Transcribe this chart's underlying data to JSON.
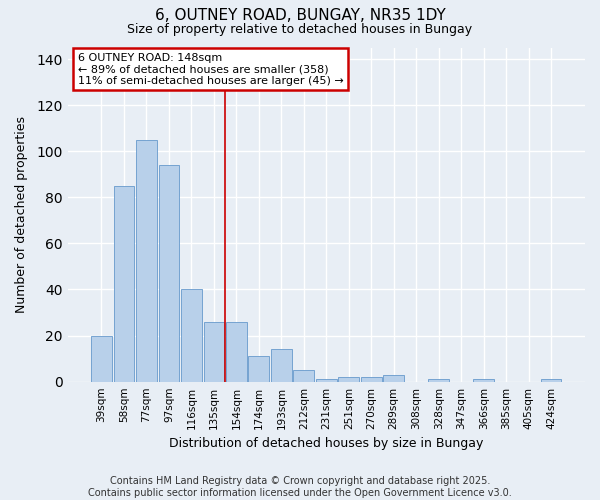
{
  "title": "6, OUTNEY ROAD, BUNGAY, NR35 1DY",
  "subtitle": "Size of property relative to detached houses in Bungay",
  "xlabel": "Distribution of detached houses by size in Bungay",
  "ylabel": "Number of detached properties",
  "categories": [
    "39sqm",
    "58sqm",
    "77sqm",
    "97sqm",
    "116sqm",
    "135sqm",
    "154sqm",
    "174sqm",
    "193sqm",
    "212sqm",
    "231sqm",
    "251sqm",
    "270sqm",
    "289sqm",
    "308sqm",
    "328sqm",
    "347sqm",
    "366sqm",
    "385sqm",
    "405sqm",
    "424sqm"
  ],
  "values": [
    20,
    85,
    105,
    94,
    40,
    26,
    26,
    11,
    14,
    5,
    1,
    2,
    2,
    3,
    0,
    1,
    0,
    1,
    0,
    0,
    1
  ],
  "bar_color": "#b8d0ea",
  "bar_edge_color": "#6699cc",
  "vline_index": 5.5,
  "annotation_text": "6 OUTNEY ROAD: 148sqm\n← 89% of detached houses are smaller (358)\n11% of semi-detached houses are larger (45) →",
  "annotation_box_facecolor": "#ffffff",
  "annotation_box_edgecolor": "#cc0000",
  "ylim": [
    0,
    145
  ],
  "yticks": [
    0,
    20,
    40,
    60,
    80,
    100,
    120,
    140
  ],
  "vline_color": "#cc0000",
  "footer_line1": "Contains HM Land Registry data © Crown copyright and database right 2025.",
  "footer_line2": "Contains public sector information licensed under the Open Government Licence v3.0.",
  "bg_color": "#e8eef5",
  "grid_color": "#ffffff"
}
